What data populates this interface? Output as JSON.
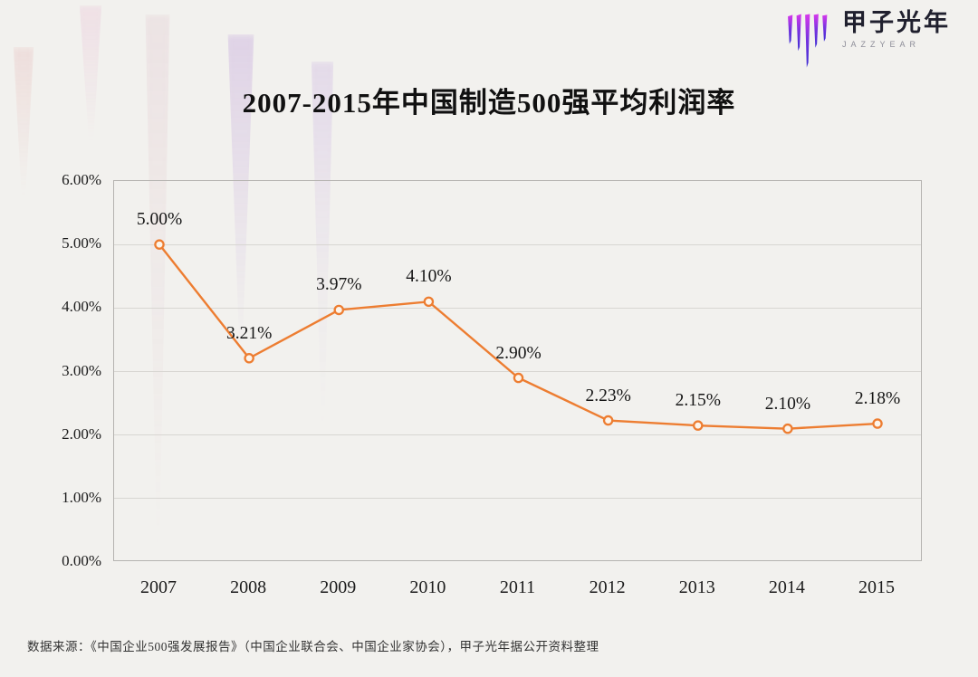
{
  "page": {
    "background": "#f2f1ee"
  },
  "logo": {
    "name": "甲子光年",
    "subtitle": "JAZZYEAR",
    "icon": "jazzyear-strokes-icon",
    "icon_color_top": "#d838ec",
    "icon_color_bottom": "#3b2bd2"
  },
  "title": "2007-2015年中国制造500强平均利润率",
  "source": "数据来源：《中国企业500强发展报告》（中国企业联合会、中国企业家协会），甲子光年据公开资料整理",
  "chart_data": {
    "type": "line",
    "title": "2007-2015年中国制造500强平均利润率",
    "categories": [
      "2007",
      "2008",
      "2009",
      "2010",
      "2011",
      "2012",
      "2013",
      "2014",
      "2015"
    ],
    "values": [
      5.0,
      3.21,
      3.97,
      4.1,
      2.9,
      2.23,
      2.15,
      2.1,
      2.18
    ],
    "point_labels": [
      "5.00%",
      "3.21%",
      "3.97%",
      "4.10%",
      "2.90%",
      "2.23%",
      "2.15%",
      "2.10%",
      "2.18%"
    ],
    "xlabel": "",
    "ylabel": "",
    "ylim": [
      0,
      6
    ],
    "ytick_step": 1,
    "ytick_labels": [
      "0.00%",
      "1.00%",
      "2.00%",
      "3.00%",
      "4.00%",
      "5.00%",
      "6.00%"
    ],
    "grid": "horizontal",
    "legend": "none",
    "line_color": "#ED7D31",
    "marker": "open-circle",
    "marker_fill": "#fdf4ea",
    "gridline_color": "#d8d6d2"
  }
}
